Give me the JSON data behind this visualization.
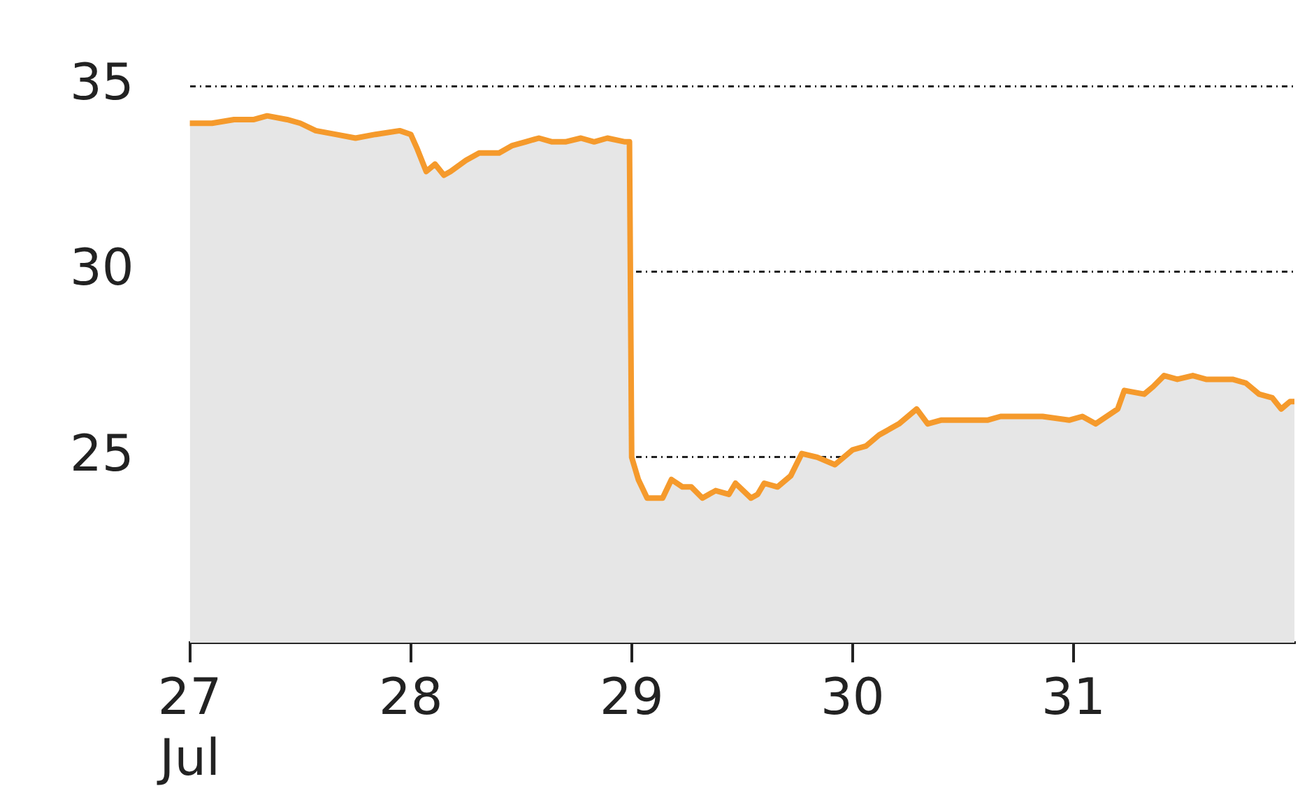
{
  "chart_data": {
    "type": "area",
    "xlim": [
      27,
      32
    ],
    "xticks": [
      {
        "value": 27,
        "label": "27\nJul"
      },
      28,
      29,
      30,
      31
    ],
    "ylim": [
      20,
      35
    ],
    "yticks": [
      25,
      30,
      35
    ],
    "grid": "y",
    "line_style": "solid",
    "marker": "none",
    "series": [
      {
        "color": "#f59a2c",
        "x": [
          27.0,
          27.1,
          27.2,
          27.29,
          27.35,
          27.44,
          27.5,
          27.57,
          27.66,
          27.75,
          27.84,
          27.95,
          28.0,
          28.03,
          28.07,
          28.11,
          28.15,
          28.18,
          28.25,
          28.31,
          28.4,
          28.46,
          28.52,
          28.58,
          28.64,
          28.7,
          28.77,
          28.83,
          28.89,
          28.97,
          28.99,
          29.0,
          29.03,
          29.07,
          29.14,
          29.18,
          29.23,
          29.27,
          29.32,
          29.38,
          29.44,
          29.47,
          29.54,
          29.57,
          29.6,
          29.66,
          29.72,
          29.77,
          29.84,
          29.92,
          30.0,
          30.06,
          30.12,
          30.21,
          30.29,
          30.34,
          30.4,
          30.49,
          30.61,
          30.67,
          30.74,
          30.86,
          30.98,
          31.04,
          31.1,
          31.2,
          31.23,
          31.32,
          31.36,
          31.41,
          31.47,
          31.54,
          31.6,
          31.66,
          31.72,
          31.78,
          31.84,
          31.9,
          31.94,
          31.98,
          32.0
        ],
        "values": [
          34.0,
          34.0,
          34.1,
          34.1,
          34.2,
          34.1,
          34.0,
          33.8,
          33.7,
          33.6,
          33.7,
          33.8,
          33.7,
          33.3,
          32.7,
          32.9,
          32.6,
          32.7,
          33.0,
          33.2,
          33.2,
          33.4,
          33.5,
          33.6,
          33.5,
          33.5,
          33.6,
          33.5,
          33.6,
          33.5,
          33.5,
          25.0,
          24.4,
          23.9,
          23.9,
          24.4,
          24.2,
          24.2,
          23.9,
          24.1,
          24.0,
          24.3,
          23.9,
          24.0,
          24.3,
          24.2,
          24.5,
          25.1,
          25.0,
          24.8,
          25.2,
          25.3,
          25.6,
          25.9,
          26.3,
          25.9,
          26.0,
          26.0,
          26.0,
          26.1,
          26.1,
          26.1,
          26.0,
          26.1,
          25.9,
          26.3,
          26.8,
          26.7,
          26.9,
          27.2,
          27.1,
          27.2,
          27.1,
          27.1,
          27.1,
          27.0,
          26.7,
          26.6,
          26.3,
          26.5,
          26.5
        ]
      }
    ]
  }
}
